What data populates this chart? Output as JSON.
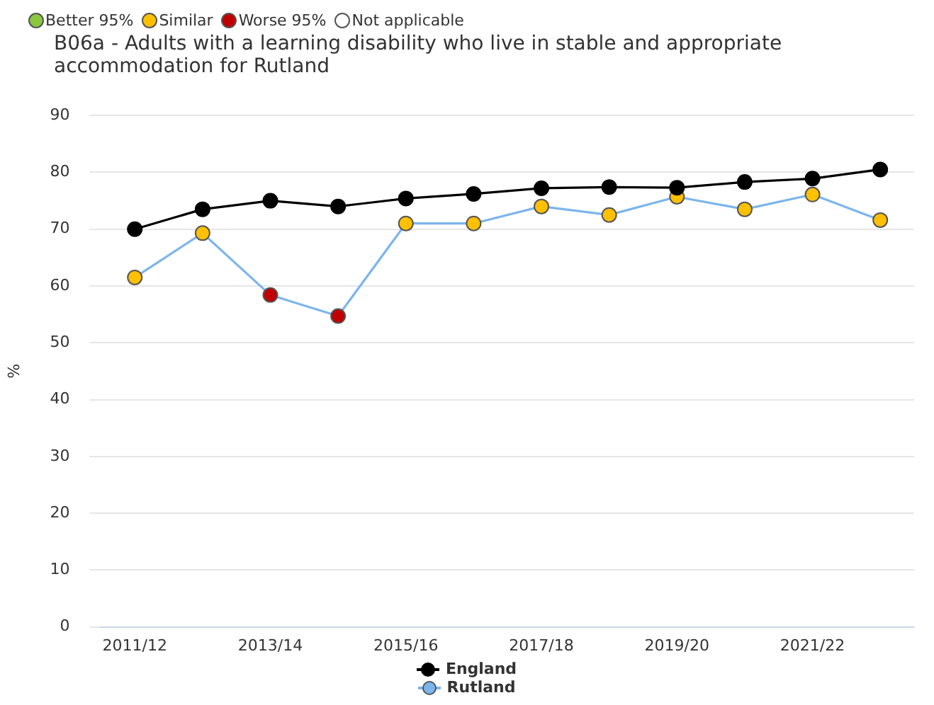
{
  "chart_data": {
    "type": "line",
    "title": "B06a - Adults with a learning disability who live in stable and appropriate accommodation for Rutland",
    "ylabel": "%",
    "annotations": [
      "Better 95%",
      "Similar",
      "Worse 95%",
      "Not applicable"
    ],
    "categories": [
      "2011/12",
      null,
      "2013/14",
      null,
      "2015/16",
      null,
      "2017/18",
      null,
      "2019/20",
      null,
      "2021/22",
      null
    ],
    "series": [
      {
        "name": "England",
        "color": "#000000",
        "values": [
          70.0,
          73.5,
          75.0,
          74.0,
          75.4,
          76.2,
          77.2,
          77.4,
          77.3,
          78.3,
          78.9,
          80.5
        ]
      },
      {
        "name": "Rutland",
        "color": "#7cb5ec",
        "colors": [
          "#ffc000",
          "#ffc000",
          "#c00000",
          "#c00000",
          "#ffc000",
          "#ffc000",
          "#ffc000",
          "#ffc000",
          "#ffc000",
          "#ffc000",
          "#ffc000",
          "#ffc000"
        ],
        "values": [
          61.5,
          69.3,
          58.4,
          54.7,
          71.0,
          71.0,
          74.0,
          72.5,
          75.7,
          73.5,
          76.1,
          71.6
        ]
      }
    ],
    "ylim": [
      0,
      90
    ],
    "yticks": [
      0,
      10,
      20,
      30,
      40,
      50,
      60,
      70,
      80,
      90
    ],
    "grid": "y",
    "legend": "bottom",
    "marker": "circle",
    "line_style": "solid"
  }
}
